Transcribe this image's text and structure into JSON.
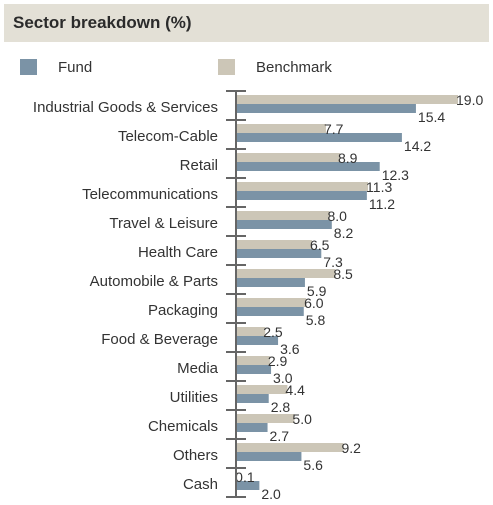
{
  "header": {
    "title": "Sector breakdown (%)"
  },
  "colors": {
    "fund": "#7b93a6",
    "benchmark": "#ccc6b7",
    "axis": "#666666",
    "text": "#333333"
  },
  "chart_data": {
    "type": "bar",
    "orientation": "horizontal",
    "title": "Sector breakdown (%)",
    "legend_position": "top",
    "categories": [
      "Industrial Goods & Services",
      "Telecom-Cable",
      "Retail",
      "Telecommunications",
      "Travel & Leisure",
      "Health Care",
      "Automobile & Parts",
      "Packaging",
      "Food & Beverage",
      "Media",
      "Utilities",
      "Chemicals",
      "Others",
      "Cash"
    ],
    "series": [
      {
        "name": "Fund",
        "values": [
          15.4,
          14.2,
          12.3,
          11.2,
          8.2,
          7.3,
          5.9,
          5.8,
          3.6,
          3.0,
          2.8,
          2.7,
          5.6,
          2.0
        ],
        "labels": [
          "15.4",
          "14.2",
          "12.3",
          "11.2",
          "8.2",
          "7.3",
          "5.9",
          "5.8",
          "3.6",
          "3.0",
          "2.8",
          "2.7",
          "5.6",
          "2.0"
        ]
      },
      {
        "name": "Benchmark",
        "values": [
          19.0,
          7.7,
          8.9,
          11.3,
          8.0,
          6.5,
          8.5,
          6.0,
          2.5,
          2.9,
          4.4,
          5.0,
          9.2,
          0.1
        ],
        "labels": [
          "19.0",
          "7.7",
          "8.9",
          "11.3",
          "8.0",
          "6.5",
          "8.5",
          "6.0",
          "2.5",
          "2.9",
          "4.4",
          "5.0",
          "9.2",
          "0.1"
        ]
      }
    ],
    "xlim": [
      0,
      19.0
    ],
    "grid": false
  }
}
